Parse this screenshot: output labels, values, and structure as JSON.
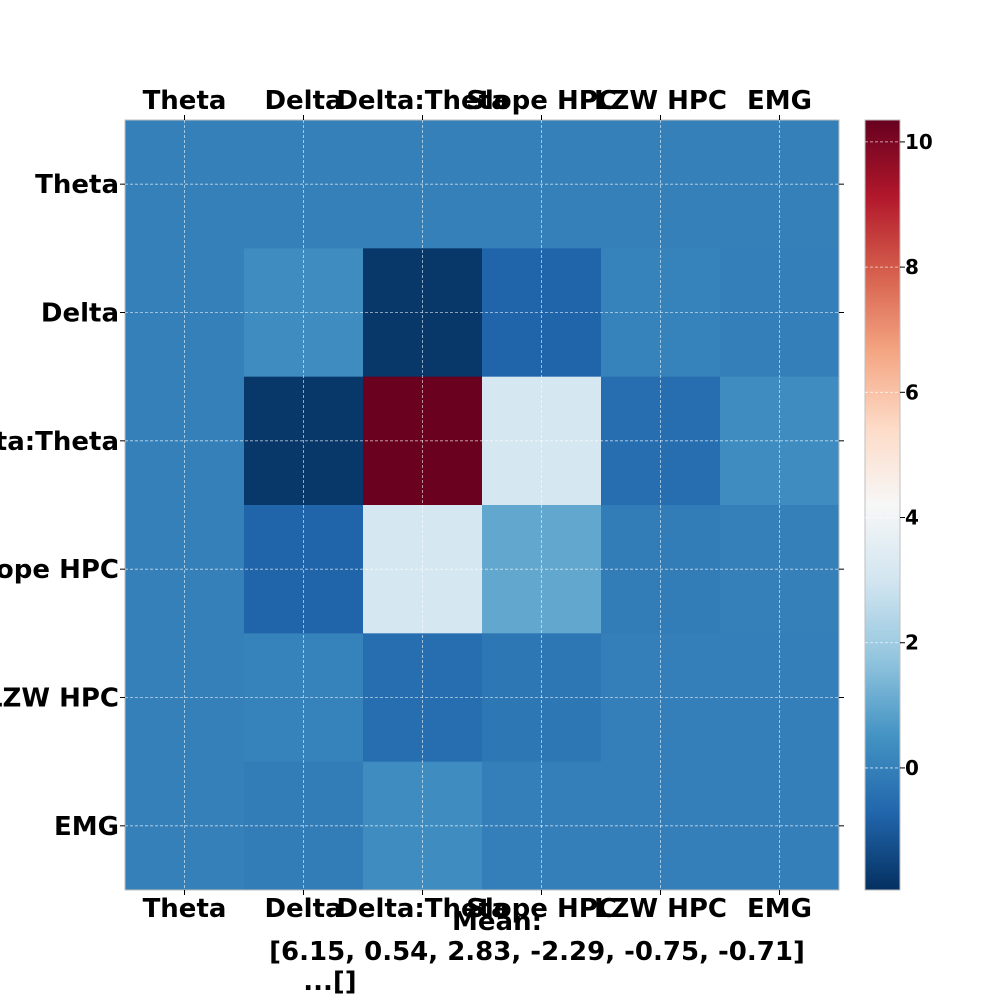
{
  "chart_data": {
    "type": "heatmap",
    "title": "",
    "xlabel": "",
    "ylabel": "",
    "categories_x": [
      "Theta",
      "Delta",
      "Delta:Theta",
      "Slope HPC",
      "LZW HPC",
      "EMG"
    ],
    "categories_y": [
      "Theta",
      "Delta",
      "Delta:Theta",
      "Slope HPC",
      "LZW HPC",
      "EMG"
    ],
    "values": [
      [
        0.0,
        0.0,
        0.0,
        0.0,
        0.0,
        0.0
      ],
      [
        0.0,
        0.35,
        -1.8,
        -0.75,
        0.05,
        -0.05
      ],
      [
        0.0,
        -1.8,
        10.3,
        3.1,
        -0.5,
        0.35
      ],
      [
        0.0,
        -0.75,
        3.1,
        1.0,
        -0.1,
        0.0
      ],
      [
        0.0,
        0.05,
        -0.5,
        -0.25,
        -0.05,
        -0.05
      ],
      [
        0.0,
        -0.1,
        0.35,
        -0.05,
        -0.05,
        -0.05
      ]
    ],
    "colorbar": {
      "range": [
        -1.95,
        10.35
      ],
      "ticks": [
        "0",
        "2",
        "4",
        "6",
        "8",
        "10"
      ],
      "tick_values": [
        0,
        2,
        4,
        6,
        8,
        10
      ],
      "colormap": "RdBu_r"
    },
    "grid": true,
    "caption_lines": [
      "Mean:",
      "[6.15, 0.54, 2.83, -2.29, -0.75, -0.71]",
      "...[]"
    ],
    "colors": {
      "cmap_stops": [
        "#053061",
        "#2166ac",
        "#4393c3",
        "#92c5de",
        "#d1e5f0",
        "#f7f7f7",
        "#fddbc7",
        "#f4a582",
        "#d6604d",
        "#b2182b",
        "#67001f"
      ],
      "frame": "#bfbfbf",
      "grid": "#ffffff"
    }
  }
}
